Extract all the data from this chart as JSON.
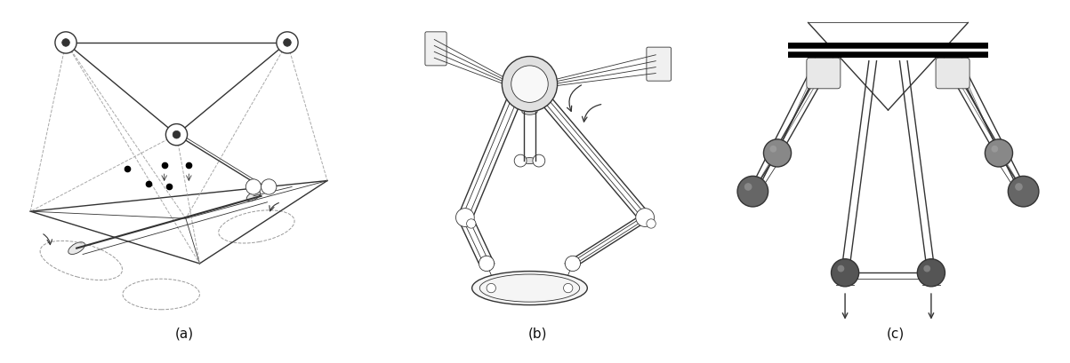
{
  "figure_width": 12.03,
  "figure_height": 4.09,
  "dpi": 100,
  "background_color": "#ffffff",
  "label_a": "(a)",
  "label_b": "(b)",
  "label_c": "(c)",
  "label_fontsize": 11,
  "label_color": "#111111",
  "gray": "#333333",
  "lgray": "#999999",
  "lw": 1.0,
  "lw_thick": 1.5,
  "lw_thin": 0.6,
  "lw_dash": 0.7
}
